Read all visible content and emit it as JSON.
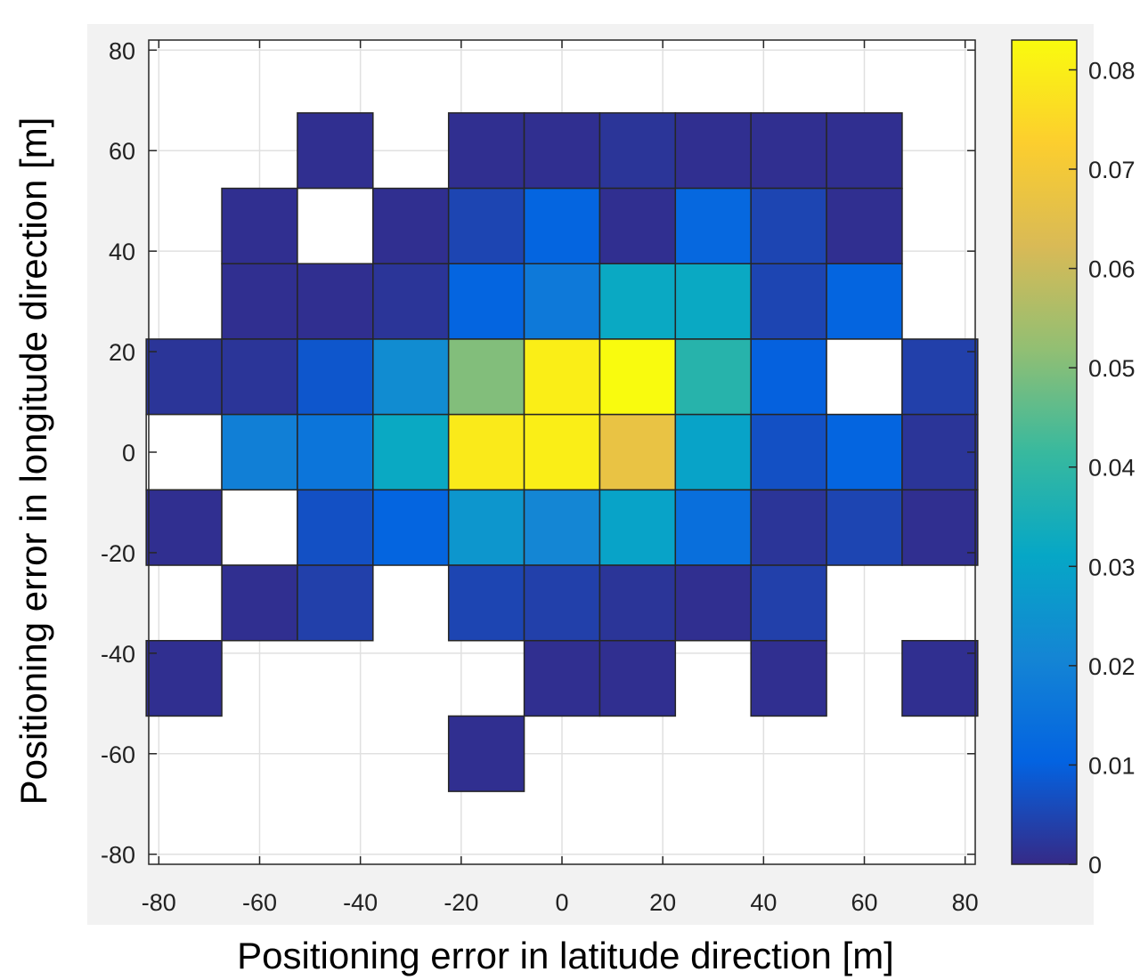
{
  "chart_data": {
    "type": "heatmap",
    "title": "",
    "xlabel": "Positioning error in latitude direction [m]",
    "ylabel": "Positioning error in longitude direction [m]",
    "xlim": [
      -82,
      82
    ],
    "ylim": [
      -82,
      82
    ],
    "grid": true,
    "x_ticks": [
      "-80",
      "-60",
      "-40",
      "-20",
      "0",
      "20",
      "40",
      "60",
      "80"
    ],
    "y_ticks": [
      "80",
      "60",
      "40",
      "20",
      "0",
      "-20",
      "-40",
      "-60",
      "-80"
    ],
    "bin_width": 15,
    "x_bin_centers": [
      -75,
      -60,
      -45,
      -30,
      -15,
      0,
      15,
      30,
      45,
      60,
      75
    ],
    "y_bin_centers": [
      60,
      45,
      30,
      15,
      0,
      -15,
      -30,
      -45,
      -60
    ],
    "values": [
      [
        null,
        null,
        0.001,
        null,
        0.001,
        0.001,
        0.002,
        0.001,
        0.001,
        0.001,
        null
      ],
      [
        null,
        0.001,
        0.0,
        0.001,
        0.005,
        0.011,
        0.001,
        0.012,
        0.005,
        0.001,
        null
      ],
      [
        null,
        0.001,
        0.001,
        0.002,
        0.011,
        0.017,
        0.032,
        0.032,
        0.005,
        0.011,
        null
      ],
      [
        0.002,
        0.002,
        0.008,
        0.023,
        0.05,
        0.08,
        0.084,
        0.038,
        0.01,
        0.0,
        0.004
      ],
      [
        0.0,
        0.019,
        0.016,
        0.032,
        0.079,
        0.08,
        0.067,
        0.03,
        0.007,
        0.011,
        0.002
      ],
      [
        0.001,
        0.0,
        0.007,
        0.011,
        0.026,
        0.021,
        0.03,
        0.014,
        0.002,
        0.005,
        0.001
      ],
      [
        null,
        0.001,
        0.004,
        null,
        0.005,
        0.004,
        0.002,
        0.001,
        0.004,
        null,
        null
      ],
      [
        0.001,
        null,
        null,
        null,
        null,
        0.001,
        0.001,
        null,
        0.001,
        null,
        0.001
      ],
      [
        null,
        null,
        null,
        null,
        0.001,
        null,
        null,
        null,
        null,
        null,
        null
      ]
    ],
    "colorbar": {
      "min": 0,
      "max": 0.083,
      "ticks": [
        "0",
        "0.01",
        "0.02",
        "0.03",
        "0.04",
        "0.05",
        "0.06",
        "0.07",
        "0.08"
      ],
      "colormap": "parula",
      "colors": [
        "#352a87",
        "#0363e1",
        "#1485d4",
        "#06a7c6",
        "#38b99e",
        "#92bf73",
        "#d9ba56",
        "#fcce2e",
        "#f9fb0e"
      ]
    }
  }
}
